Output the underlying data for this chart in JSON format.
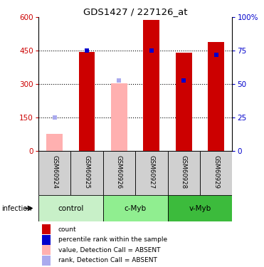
{
  "title": "GDS1427 / 227126_at",
  "samples": [
    "GSM60924",
    "GSM60925",
    "GSM60926",
    "GSM60927",
    "GSM60928",
    "GSM60929"
  ],
  "groups": [
    {
      "name": "control",
      "samples": [
        0,
        1
      ],
      "color": "#c8f0c8"
    },
    {
      "name": "c-Myb",
      "samples": [
        2,
        3
      ],
      "color": "#90ee90"
    },
    {
      "name": "v-Myb",
      "samples": [
        4,
        5
      ],
      "color": "#3cbb3c"
    }
  ],
  "infection_label": "infection",
  "bar_values": [
    75,
    445,
    305,
    590,
    440,
    490
  ],
  "rank_values": [
    25,
    75,
    53,
    75,
    53,
    72
  ],
  "absent": [
    true,
    false,
    true,
    false,
    false,
    false
  ],
  "ylim_left": [
    0,
    600
  ],
  "ylim_right": [
    0,
    100
  ],
  "yticks_left": [
    0,
    150,
    300,
    450,
    600
  ],
  "yticks_right": [
    0,
    25,
    50,
    75,
    100
  ],
  "left_color": "#cc0000",
  "right_color": "#0000cc",
  "bar_color_present": "#cc0000",
  "bar_color_absent": "#ffb0b0",
  "rank_color_present": "#0000cc",
  "rank_color_absent": "#aaaaee",
  "grid_yticks": [
    150,
    300,
    450
  ],
  "sample_bg_color": "#d0d0d0",
  "legend_items": [
    {
      "color": "#cc0000",
      "label": "count"
    },
    {
      "color": "#0000cc",
      "label": "percentile rank within the sample"
    },
    {
      "color": "#ffb0b0",
      "label": "value, Detection Call = ABSENT"
    },
    {
      "color": "#aaaaee",
      "label": "rank, Detection Call = ABSENT"
    }
  ]
}
